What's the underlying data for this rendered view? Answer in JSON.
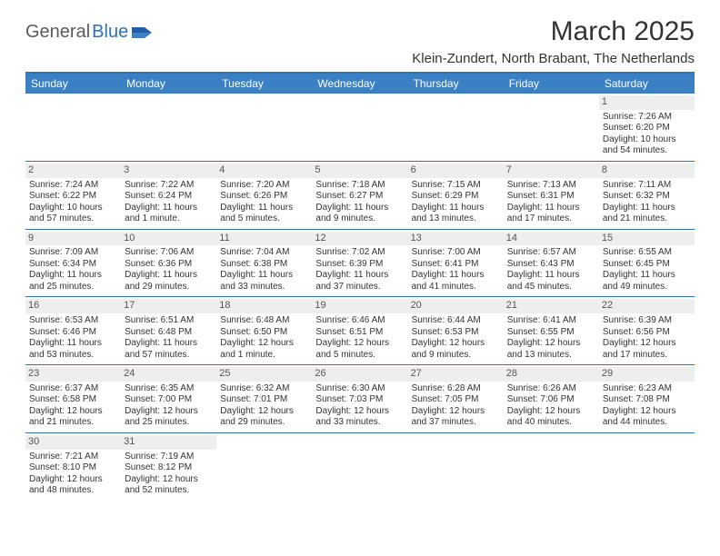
{
  "logo": {
    "part1": "General",
    "part2": "Blue"
  },
  "title": "March 2025",
  "location": "Klein-Zundert, North Brabant, The Netherlands",
  "calendar": {
    "type": "table",
    "header_bg": "#3b7fc4",
    "header_fg": "#ffffff",
    "border_color": "#2e72b6",
    "daynum_bg": "#eeeeee",
    "background_color": "#ffffff",
    "text_color": "#333333",
    "font_size_body": 10,
    "font_size_header": 12,
    "columns": [
      "Sunday",
      "Monday",
      "Tuesday",
      "Wednesday",
      "Thursday",
      "Friday",
      "Saturday"
    ],
    "weeks": [
      [
        null,
        null,
        null,
        null,
        null,
        null,
        {
          "n": "1",
          "sr": "Sunrise: 7:26 AM",
          "ss": "Sunset: 6:20 PM",
          "dl": "Daylight: 10 hours and 54 minutes."
        }
      ],
      [
        {
          "n": "2",
          "sr": "Sunrise: 7:24 AM",
          "ss": "Sunset: 6:22 PM",
          "dl": "Daylight: 10 hours and 57 minutes."
        },
        {
          "n": "3",
          "sr": "Sunrise: 7:22 AM",
          "ss": "Sunset: 6:24 PM",
          "dl": "Daylight: 11 hours and 1 minute."
        },
        {
          "n": "4",
          "sr": "Sunrise: 7:20 AM",
          "ss": "Sunset: 6:26 PM",
          "dl": "Daylight: 11 hours and 5 minutes."
        },
        {
          "n": "5",
          "sr": "Sunrise: 7:18 AM",
          "ss": "Sunset: 6:27 PM",
          "dl": "Daylight: 11 hours and 9 minutes."
        },
        {
          "n": "6",
          "sr": "Sunrise: 7:15 AM",
          "ss": "Sunset: 6:29 PM",
          "dl": "Daylight: 11 hours and 13 minutes."
        },
        {
          "n": "7",
          "sr": "Sunrise: 7:13 AM",
          "ss": "Sunset: 6:31 PM",
          "dl": "Daylight: 11 hours and 17 minutes."
        },
        {
          "n": "8",
          "sr": "Sunrise: 7:11 AM",
          "ss": "Sunset: 6:32 PM",
          "dl": "Daylight: 11 hours and 21 minutes."
        }
      ],
      [
        {
          "n": "9",
          "sr": "Sunrise: 7:09 AM",
          "ss": "Sunset: 6:34 PM",
          "dl": "Daylight: 11 hours and 25 minutes."
        },
        {
          "n": "10",
          "sr": "Sunrise: 7:06 AM",
          "ss": "Sunset: 6:36 PM",
          "dl": "Daylight: 11 hours and 29 minutes."
        },
        {
          "n": "11",
          "sr": "Sunrise: 7:04 AM",
          "ss": "Sunset: 6:38 PM",
          "dl": "Daylight: 11 hours and 33 minutes."
        },
        {
          "n": "12",
          "sr": "Sunrise: 7:02 AM",
          "ss": "Sunset: 6:39 PM",
          "dl": "Daylight: 11 hours and 37 minutes."
        },
        {
          "n": "13",
          "sr": "Sunrise: 7:00 AM",
          "ss": "Sunset: 6:41 PM",
          "dl": "Daylight: 11 hours and 41 minutes."
        },
        {
          "n": "14",
          "sr": "Sunrise: 6:57 AM",
          "ss": "Sunset: 6:43 PM",
          "dl": "Daylight: 11 hours and 45 minutes."
        },
        {
          "n": "15",
          "sr": "Sunrise: 6:55 AM",
          "ss": "Sunset: 6:45 PM",
          "dl": "Daylight: 11 hours and 49 minutes."
        }
      ],
      [
        {
          "n": "16",
          "sr": "Sunrise: 6:53 AM",
          "ss": "Sunset: 6:46 PM",
          "dl": "Daylight: 11 hours and 53 minutes."
        },
        {
          "n": "17",
          "sr": "Sunrise: 6:51 AM",
          "ss": "Sunset: 6:48 PM",
          "dl": "Daylight: 11 hours and 57 minutes."
        },
        {
          "n": "18",
          "sr": "Sunrise: 6:48 AM",
          "ss": "Sunset: 6:50 PM",
          "dl": "Daylight: 12 hours and 1 minute."
        },
        {
          "n": "19",
          "sr": "Sunrise: 6:46 AM",
          "ss": "Sunset: 6:51 PM",
          "dl": "Daylight: 12 hours and 5 minutes."
        },
        {
          "n": "20",
          "sr": "Sunrise: 6:44 AM",
          "ss": "Sunset: 6:53 PM",
          "dl": "Daylight: 12 hours and 9 minutes."
        },
        {
          "n": "21",
          "sr": "Sunrise: 6:41 AM",
          "ss": "Sunset: 6:55 PM",
          "dl": "Daylight: 12 hours and 13 minutes."
        },
        {
          "n": "22",
          "sr": "Sunrise: 6:39 AM",
          "ss": "Sunset: 6:56 PM",
          "dl": "Daylight: 12 hours and 17 minutes."
        }
      ],
      [
        {
          "n": "23",
          "sr": "Sunrise: 6:37 AM",
          "ss": "Sunset: 6:58 PM",
          "dl": "Daylight: 12 hours and 21 minutes."
        },
        {
          "n": "24",
          "sr": "Sunrise: 6:35 AM",
          "ss": "Sunset: 7:00 PM",
          "dl": "Daylight: 12 hours and 25 minutes."
        },
        {
          "n": "25",
          "sr": "Sunrise: 6:32 AM",
          "ss": "Sunset: 7:01 PM",
          "dl": "Daylight: 12 hours and 29 minutes."
        },
        {
          "n": "26",
          "sr": "Sunrise: 6:30 AM",
          "ss": "Sunset: 7:03 PM",
          "dl": "Daylight: 12 hours and 33 minutes."
        },
        {
          "n": "27",
          "sr": "Sunrise: 6:28 AM",
          "ss": "Sunset: 7:05 PM",
          "dl": "Daylight: 12 hours and 37 minutes."
        },
        {
          "n": "28",
          "sr": "Sunrise: 6:26 AM",
          "ss": "Sunset: 7:06 PM",
          "dl": "Daylight: 12 hours and 40 minutes."
        },
        {
          "n": "29",
          "sr": "Sunrise: 6:23 AM",
          "ss": "Sunset: 7:08 PM",
          "dl": "Daylight: 12 hours and 44 minutes."
        }
      ],
      [
        {
          "n": "30",
          "sr": "Sunrise: 7:21 AM",
          "ss": "Sunset: 8:10 PM",
          "dl": "Daylight: 12 hours and 48 minutes."
        },
        {
          "n": "31",
          "sr": "Sunrise: 7:19 AM",
          "ss": "Sunset: 8:12 PM",
          "dl": "Daylight: 12 hours and 52 minutes."
        },
        null,
        null,
        null,
        null,
        null
      ]
    ]
  }
}
